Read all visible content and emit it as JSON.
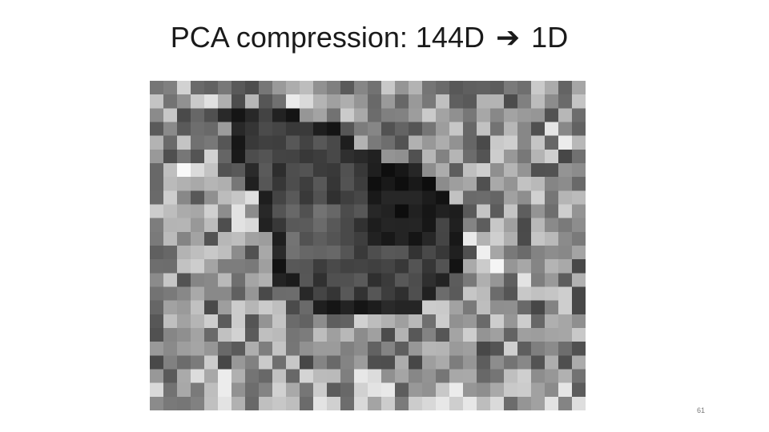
{
  "slide": {
    "title_before_arrow": "PCA compression: 144D",
    "arrow_glyph": "➔",
    "title_after_arrow": "1D",
    "page_number": "61"
  },
  "image": {
    "icon": "reconstructed-butterfly-grayscale-mosaic",
    "seed": 61
  }
}
